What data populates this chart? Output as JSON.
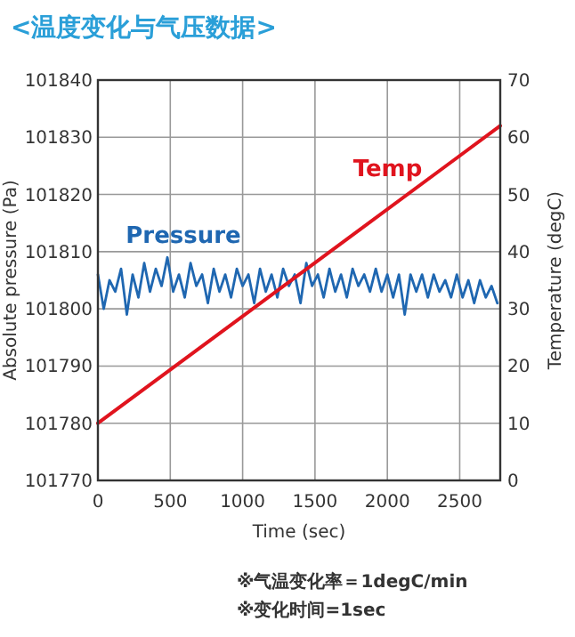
{
  "chart_data": {
    "type": "line",
    "title": "<温度变化与气压数据>",
    "xlabel": "Time (sec)",
    "ylabel": "Absolute pressure (Pa)",
    "y2label": "Temperature (degC)",
    "xlim": [
      0,
      2780
    ],
    "xticks": [
      0,
      500,
      1000,
      1500,
      2000,
      2500
    ],
    "ylim": [
      101770,
      101840
    ],
    "yticks": [
      101770,
      101780,
      101790,
      101800,
      101810,
      101820,
      101830,
      101840
    ],
    "y2lim": [
      0,
      70
    ],
    "y2ticks": [
      0,
      10,
      20,
      30,
      40,
      50,
      60,
      70
    ],
    "grid": true,
    "series": [
      {
        "name": "Pressure",
        "color": "#1f67b1",
        "x": [
          0,
          40,
          80,
          120,
          160,
          200,
          240,
          280,
          320,
          360,
          400,
          440,
          480,
          520,
          560,
          600,
          640,
          680,
          720,
          760,
          800,
          840,
          880,
          920,
          960,
          1000,
          1040,
          1080,
          1120,
          1160,
          1200,
          1240,
          1280,
          1320,
          1360,
          1400,
          1440,
          1480,
          1520,
          1560,
          1600,
          1640,
          1680,
          1720,
          1760,
          1800,
          1840,
          1880,
          1920,
          1960,
          2000,
          2040,
          2080,
          2120,
          2160,
          2200,
          2240,
          2280,
          2320,
          2360,
          2400,
          2440,
          2480,
          2520,
          2560,
          2600,
          2640,
          2680,
          2720,
          2760
        ],
        "values": [
          101806,
          101800,
          101805,
          101803,
          101807,
          101799,
          101806,
          101802,
          101808,
          101803,
          101807,
          101804,
          101809,
          101803,
          101806,
          101802,
          101808,
          101804,
          101806,
          101801,
          101807,
          101803,
          101806,
          101802,
          101807,
          101804,
          101806,
          101801,
          101807,
          101803,
          101806,
          101802,
          101807,
          101804,
          101806,
          101801,
          101808,
          101804,
          101806,
          101802,
          101807,
          101803,
          101806,
          101802,
          101807,
          101804,
          101806,
          101803,
          101807,
          101803,
          101806,
          101802,
          101806,
          101799,
          101806,
          101803,
          101806,
          101802,
          101806,
          101803,
          101805,
          101802,
          101806,
          101802,
          101805,
          101801,
          101805,
          101802,
          101804,
          101801
        ]
      },
      {
        "name": "Temp",
        "color": "#e0141e",
        "axis": "y2",
        "x": [
          0,
          2780
        ],
        "values": [
          10,
          62
        ]
      }
    ],
    "annotations": [
      "※气温变化率＝1degC/min",
      "※变化时间=1sec"
    ]
  }
}
